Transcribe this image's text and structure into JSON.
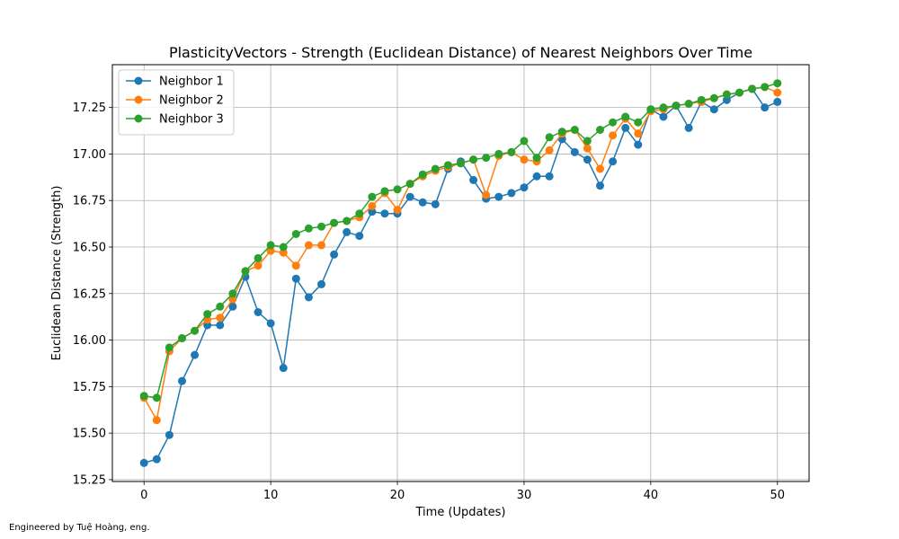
{
  "chart_data": {
    "type": "line",
    "title": "PlasticityVectors - Strength (Euclidean Distance) of Nearest Neighbors Over Time",
    "xlabel": "Time (Updates)",
    "ylabel": "Euclidean Distance (Strength)",
    "xlim": [
      -2.5,
      52.5
    ],
    "ylim": [
      15.24,
      17.48
    ],
    "xticks": [
      0,
      10,
      20,
      30,
      40,
      50
    ],
    "yticks": [
      15.25,
      15.5,
      15.75,
      16.0,
      16.25,
      16.5,
      16.75,
      17.0,
      17.25
    ],
    "grid": true,
    "legend_position": "upper-left",
    "x": [
      0,
      1,
      2,
      3,
      4,
      5,
      6,
      7,
      8,
      9,
      10,
      11,
      12,
      13,
      14,
      15,
      16,
      17,
      18,
      19,
      20,
      21,
      22,
      23,
      24,
      25,
      26,
      27,
      28,
      29,
      30,
      31,
      32,
      33,
      34,
      35,
      36,
      37,
      38,
      39,
      40,
      41,
      42,
      43,
      44,
      45,
      46,
      47,
      48,
      49,
      50
    ],
    "series": [
      {
        "name": "Neighbor 1",
        "color": "#1f77b4",
        "values": [
          15.34,
          15.36,
          15.49,
          15.78,
          15.92,
          16.08,
          16.08,
          16.18,
          16.34,
          16.15,
          16.09,
          15.85,
          16.33,
          16.23,
          16.3,
          16.46,
          16.58,
          16.56,
          16.69,
          16.68,
          16.68,
          16.77,
          16.74,
          16.73,
          16.92,
          16.96,
          16.86,
          16.76,
          16.77,
          16.79,
          16.82,
          16.88,
          16.88,
          17.08,
          17.01,
          16.97,
          16.83,
          16.96,
          17.14,
          17.05,
          17.24,
          17.2,
          17.26,
          17.14,
          17.28,
          17.24,
          17.29,
          17.33,
          17.35,
          17.25,
          17.28
        ]
      },
      {
        "name": "Neighbor 2",
        "color": "#ff7f0e",
        "values": [
          15.69,
          15.57,
          15.94,
          16.01,
          16.05,
          16.11,
          16.12,
          16.22,
          16.37,
          16.4,
          16.48,
          16.47,
          16.4,
          16.51,
          16.51,
          16.63,
          16.64,
          16.66,
          16.72,
          16.79,
          16.7,
          16.84,
          16.88,
          16.91,
          16.93,
          16.95,
          16.97,
          16.78,
          16.99,
          17.01,
          16.97,
          16.96,
          17.02,
          17.11,
          17.13,
          17.03,
          16.92,
          17.1,
          17.19,
          17.11,
          17.23,
          17.24,
          17.26,
          17.27,
          17.28,
          17.3,
          17.32,
          17.33,
          17.35,
          17.36,
          17.33
        ]
      },
      {
        "name": "Neighbor 3",
        "color": "#2ca02c",
        "values": [
          15.7,
          15.69,
          15.96,
          16.01,
          16.05,
          16.14,
          16.18,
          16.25,
          16.37,
          16.44,
          16.51,
          16.5,
          16.57,
          16.6,
          16.61,
          16.63,
          16.64,
          16.68,
          16.77,
          16.8,
          16.81,
          16.84,
          16.89,
          16.92,
          16.94,
          16.95,
          16.97,
          16.98,
          17.0,
          17.01,
          17.07,
          16.98,
          17.09,
          17.12,
          17.13,
          17.07,
          17.13,
          17.17,
          17.2,
          17.17,
          17.24,
          17.25,
          17.26,
          17.27,
          17.29,
          17.3,
          17.32,
          17.33,
          17.35,
          17.36,
          17.38
        ]
      }
    ]
  },
  "footer": {
    "credit": "Engineered by Tuệ Hoàng, eng."
  }
}
